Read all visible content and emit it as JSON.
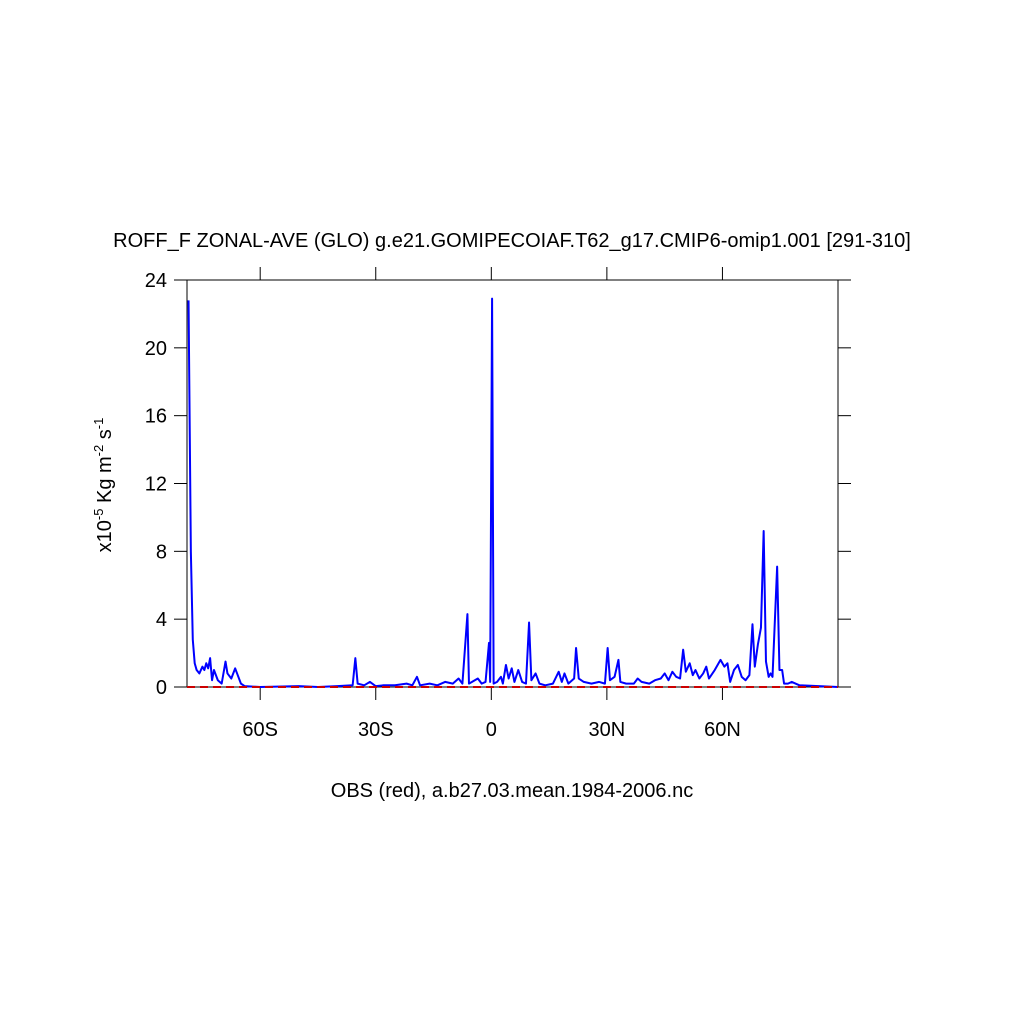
{
  "chart_data": {
    "type": "line",
    "title": "ROFF_F ZONAL-AVE (GLO) g.e21.GOMIPECOIAF.T62_g17.CMIP6-omip1.001 [291-310]",
    "subtitle": "OBS (red), a.b27.03.mean.1984-2006.nc",
    "ylabel": [
      "x10",
      "-5",
      " Kg m",
      "-2",
      " s",
      "-1"
    ],
    "xlim": [
      -79,
      90
    ],
    "ylim": [
      0,
      24
    ],
    "xticks": [
      {
        "value": -60,
        "label": "60S"
      },
      {
        "value": -30,
        "label": "30S"
      },
      0,
      {
        "value": 30,
        "label": "30N"
      },
      {
        "value": 60,
        "label": "60N"
      }
    ],
    "yticks": [
      0,
      4,
      8,
      12,
      16,
      20,
      24
    ],
    "series": [
      {
        "color": "#0000ff",
        "style": "solid",
        "x": [
          -78.6,
          -78,
          -77.5,
          -77,
          -76.5,
          -75.8,
          -75,
          -74.5,
          -74,
          -73.5,
          -73,
          -72.5,
          -72,
          -71.5,
          -71,
          -70,
          -69,
          -68.5,
          -67.5,
          -66.5,
          -66,
          -65,
          -64,
          -60,
          -50,
          -45,
          -40,
          -36,
          -35.3,
          -34.7,
          -33,
          -31.5,
          -30,
          -28,
          -25,
          -22,
          -20.5,
          -19.3,
          -18.5,
          -16,
          -14,
          -12,
          -10,
          -8.5,
          -7.5,
          -6.2,
          -5.8,
          -5,
          -3.5,
          -2.5,
          -1.5,
          -0.6,
          -0.3,
          0.2,
          0.6,
          1.5,
          2.5,
          3,
          3.8,
          4.5,
          5.3,
          6,
          7,
          8,
          9,
          9.8,
          10.4,
          11.5,
          12.5,
          14,
          16,
          17.5,
          18.3,
          19,
          20,
          21.5,
          22,
          22.7,
          24,
          26,
          28,
          29.5,
          30.2,
          30.8,
          32,
          33,
          33.5,
          35,
          37,
          38,
          39,
          41,
          42.5,
          44,
          45,
          46,
          47,
          48,
          49,
          49.8,
          50.5,
          51.5,
          52.3,
          53,
          54,
          55,
          55.8,
          56.5,
          58,
          59.5,
          60.5,
          61.3,
          62,
          63,
          64,
          65,
          66,
          67,
          67.8,
          68.4,
          69.2,
          70,
          70.7,
          71.3,
          72,
          72.5,
          73,
          74.2,
          74.8,
          75.5,
          76,
          77,
          78,
          80,
          85,
          90
        ],
        "values": [
          22.8,
          8,
          2.8,
          1.4,
          1.0,
          0.8,
          1.2,
          1.0,
          1.4,
          1.1,
          1.7,
          0.4,
          1.0,
          0.7,
          0.4,
          0.2,
          1.5,
          0.8,
          0.5,
          1.1,
          0.8,
          0.2,
          0.05,
          0,
          0.05,
          0,
          0.05,
          0.1,
          1.7,
          0.2,
          0.1,
          0.3,
          0.05,
          0.1,
          0.1,
          0.2,
          0.1,
          0.6,
          0.1,
          0.2,
          0.1,
          0.3,
          0.2,
          0.5,
          0.2,
          4.3,
          0.2,
          0.3,
          0.5,
          0.2,
          0.3,
          2.6,
          0.3,
          22.9,
          0.2,
          0.3,
          0.6,
          0.2,
          1.3,
          0.5,
          1.1,
          0.3,
          1.0,
          0.3,
          0.2,
          3.8,
          0.4,
          0.8,
          0.2,
          0.1,
          0.2,
          0.9,
          0.3,
          0.8,
          0.2,
          0.5,
          2.3,
          0.5,
          0.3,
          0.2,
          0.3,
          0.2,
          2.3,
          0.4,
          0.6,
          1.6,
          0.3,
          0.2,
          0.2,
          0.5,
          0.3,
          0.2,
          0.4,
          0.5,
          0.8,
          0.4,
          0.9,
          0.6,
          0.5,
          2.2,
          0.9,
          1.4,
          0.7,
          1.0,
          0.5,
          0.8,
          1.2,
          0.5,
          1.0,
          1.6,
          1.2,
          1.4,
          0.3,
          1.0,
          1.3,
          0.6,
          0.4,
          0.7,
          3.7,
          1.2,
          2.5,
          3.5,
          9.2,
          1.5,
          0.6,
          0.8,
          0.6,
          7.1,
          1.0,
          1.0,
          0.2,
          0.2,
          0.3,
          0.1,
          0.05,
          0
        ]
      },
      {
        "color": "#cc0000",
        "style": "dashed",
        "x": [
          -79,
          90
        ],
        "values": [
          0,
          0
        ]
      }
    ]
  }
}
